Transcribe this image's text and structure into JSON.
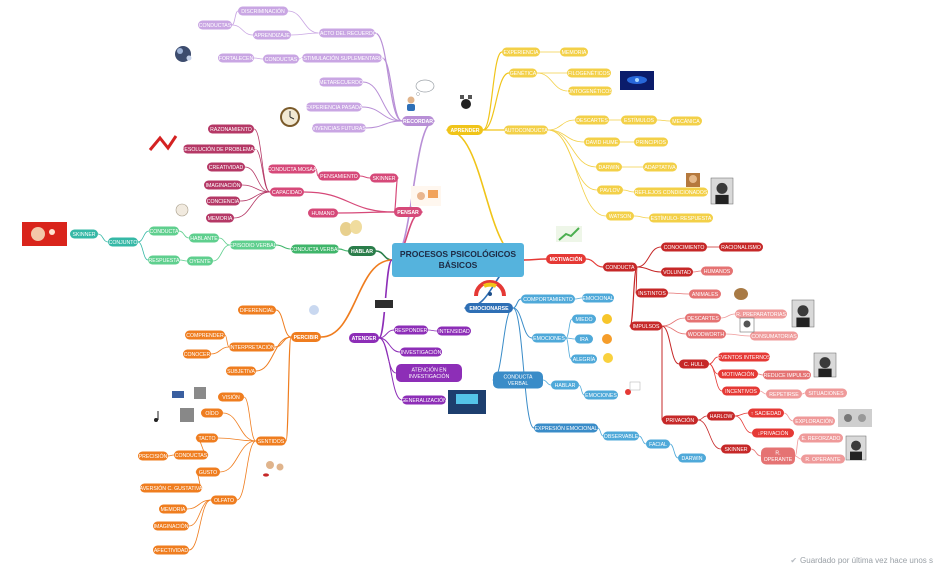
{
  "root": {
    "line1": "PROCESOS PSICOLÓGICOS",
    "line2": "BÁSICOS"
  },
  "status": {
    "saved_text": "Guardado por última vez hace unos s"
  },
  "colors": {
    "root": "#55b3dd",
    "recordar": "#b88fd6",
    "aprender": "#f0c419",
    "pensar": "#d64979",
    "hablar": "#3fb56a",
    "percibir": "#ef7d1f",
    "atender": "#8d2eb7",
    "emocionarse": "#2e6fb5",
    "motivacion": "#e53935",
    "emocion_light": "#4fa9d9"
  },
  "nodes": {
    "recordar": "RECORDAR",
    "tacto_recuerdo": "TACTO DEL RECUERDO",
    "discriminacion": "DISCRIMINACIÓN",
    "conductas_a": "CONDUCTAS",
    "aprendizaje": "APRENDIZAJE",
    "estimulacion": "ESTIMULACIÓN SUPLEMENTARIA",
    "conductas_b": "CONDUCTAS",
    "fortalecen": "FORTALECEN",
    "metarecuerdo": "METARECUERDO",
    "experiencia_pasada": "EXPERIENCIA PASADA",
    "vivencias": "VIVENCIAS FUTURAS",
    "aprender": "APRENDER",
    "experiencia": "EXPERIENCIA",
    "memoria_ap": "MEMORIA",
    "genetica": "GENÉTICA",
    "filogeneticos": "FILOGENÉTICOS",
    "ontogeneticos": "ONTOGENÉTICOS",
    "autoconducta": "AUTOCONDUCTA",
    "descartes_ap": "DESCARTES",
    "estimulos": "ESTÍMULOS",
    "mecanica": "MECÁNICA",
    "david_hume": "DAVID HUME",
    "principios": "PRINCIPIOS",
    "darwin_ap": "DARWIN",
    "adaptativa": "ADAPTATIVA",
    "pavlov": "PAVLOV",
    "reflejos": "REFLEJOS CONDICIONADOS",
    "watson": "WATSON",
    "estimulo_respuesta": "ESTÍMULO- RESPUESTA",
    "pensar": "PENSAR",
    "conducta_mosaa": "CONDUCTA MOSAA",
    "pensamiento": "PENSAMIENTO",
    "skinner_pe": "SKINNER",
    "capacidad": "CAPACIDAD",
    "razonamiento": "RAZONAMIENTO",
    "resolucion": "RESOLUCIÓN DE PROBLEMAS",
    "creatividad": "CREATIVIDAD",
    "imaginacion_pe": "IMAGINACIÓN",
    "conciencia": "CONCIENCIA",
    "memoria_pe": "MEMORIA",
    "humano": "HUMANO",
    "hablar": "HABLAR",
    "conducta_verbal_h": "CONDUCTA VERBAL",
    "episodio_verbal": "EPISODIO VERBAL",
    "hablante": "HABLANTE",
    "oyente": "OYENTE",
    "conducta_h": "CONDUCTA",
    "respuesta_h": "RESPUESTA",
    "conjunto": "CONJUNTO",
    "skinner_h": "SKINNER",
    "percibir": "PERCIBIR",
    "diferencial": "DIFERENCIAL",
    "interpretacion": "INTERPRETACIÓN",
    "comprender": "COMPRENDER",
    "conocer": "CONOCER",
    "subjetiva": "SUBJETIVA",
    "sentidos": "SENTIDOS",
    "vision": "VISIÓN",
    "oido": "OÍDO",
    "tacto": "TACTO",
    "conductas_p": "CONDUCTAS",
    "precision": "PRECISIÓN",
    "gusto": "GUSTO",
    "aversion": "AVERSIÓN C. GUSTATIVA",
    "olfato": "OLFATO",
    "memoria_p": "MEMORIA",
    "imaginacion_p": "IMAGINACIÓN",
    "afectividad": "AFECTIVIDAD",
    "atender": "ATENDER",
    "responder": "RESPONDER",
    "intensidad": "INTENSIDAD",
    "investigacion": "INVESTIGACIÓN",
    "atencion_1": "ATENCIÓN EN",
    "atencion_2": "INVESTIGACIÓN",
    "generalizacion": "GENERALIZACIÓN",
    "emocionarse": "EMOCIONARSE",
    "comportamiento": "COMPORTAMIENTO",
    "emocional": "EMOCIONAL",
    "emociones_1": "EMOCIONES",
    "miedo": "MIEDO",
    "ira": "IRA",
    "alegria": "ALEGRÍA",
    "conducta_verbal_e1": "CONDUCTA",
    "conducta_verbal_e2": "VERBAL",
    "hablar_e": "HABLAR",
    "emociones_2": "EMOCIONES",
    "expresion": "EXPRESIÓN EMOCIONAL",
    "observable": "OBSERVABLE",
    "facial": "FACIAL",
    "darwin_e": "DARWIN",
    "motivacion": "MOTIVACIÓN",
    "conducta_m": "CONDUCTA",
    "conocimiento": "CONOCIMIENTO",
    "racionalismo": "RACIONALISMO",
    "voluntad": "VOLUNTAD",
    "humanos": "HUMANOS",
    "instintos": "INSTINTOS",
    "animales": "ANIMALES",
    "impulsos": "IMPULSOS",
    "descartes_m": "DESCARTES",
    "preparatorias": "R. PREPARATORIAS",
    "woodworth": "WOODWORTH",
    "consumatorias": "CONSUMATORIAS",
    "c_hull": "C. HULL",
    "eventos": "EVENTOS INTERNOS",
    "motivacion_2": "MOTIVACIÓN",
    "reduce": "REDUCE IMPULSO",
    "incentivos": "INCENTIVOS",
    "repetirse": "REPETIRSE",
    "situaciones": "SITUACIONES",
    "privacion": "PRIVACIÓN",
    "harlow": "HARLOW",
    "saciedad": "↑ SACIEDAD",
    "exploracion": "EXPLORACIÓN",
    "privacion_2": "↓PRIVACIÓN",
    "skinner_m": "SKINNER",
    "r_operante_1": "R.",
    "r_operante_2": "OPERANTE",
    "reforzado": "E. REFORZADO",
    "r_operante_b": "R. OPERANTE"
  },
  "icons": [
    "brain-head-icon",
    "clock-icon",
    "thinking-person-icon",
    "thought-bubble-icon",
    "head-gears-icon",
    "galaxy-image-icon",
    "dog-icon",
    "portrait-icon",
    "brain-sketch-icon",
    "bulb-head-icon",
    "theater-masks-icon",
    "gauge-icon",
    "classroom-icon",
    "lecture-icon",
    "five-senses-icon",
    "eye-icon",
    "ear-icon",
    "music-note-icon",
    "fear-emoji-icon",
    "angry-emoji-icon",
    "happy-emoji-icon",
    "heart-hands-icon",
    "dots-icon",
    "chart-arrow-icon",
    "hamster-icon",
    "monkeys-icon"
  ]
}
